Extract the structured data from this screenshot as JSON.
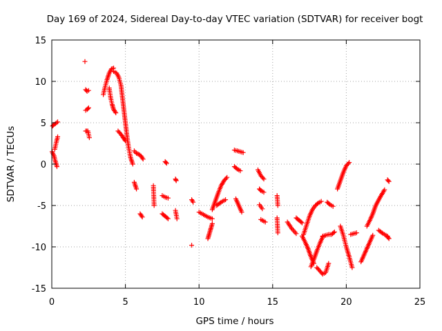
{
  "chart_data": {
    "type": "scatter",
    "title": "Day 169 of 2024, Sidereal Day-to-day VTEC variation (SDTVAR) for receiver bogt",
    "xlabel": "GPS time / hours",
    "ylabel": "SDTVAR / TECUs",
    "xlim": [
      0,
      25
    ],
    "ylim": [
      -15,
      15
    ],
    "x_ticks": [
      0,
      5,
      10,
      15,
      20,
      25
    ],
    "y_ticks": [
      -15,
      -10,
      -5,
      0,
      5,
      10,
      15
    ],
    "x_tick_labels": [
      "0",
      "5",
      "10",
      "15",
      "20",
      "25"
    ],
    "y_tick_labels": [
      "-15",
      "-10",
      "-5",
      "0",
      "5",
      "10",
      "15"
    ],
    "grid": true,
    "marker": "plus",
    "color": "#ff0000",
    "segments": [
      {
        "x": [
          0.02,
          0.15,
          0.25,
          0.35
        ],
        "y": [
          1.5,
          1.0,
          0.3,
          -0.3
        ]
      },
      {
        "x": [
          0.05,
          0.15,
          0.25,
          0.4
        ],
        "y": [
          4.6,
          4.8,
          4.9,
          5.1
        ]
      },
      {
        "x": [
          0.2,
          0.3,
          0.4
        ],
        "y": [
          1.8,
          2.6,
          3.3
        ]
      },
      {
        "x": [
          2.25
        ],
        "y": [
          12.4
        ]
      },
      {
        "x": [
          2.3,
          2.4,
          2.5
        ],
        "y": [
          9.0,
          8.8,
          8.9
        ]
      },
      {
        "x": [
          2.3,
          2.4,
          2.5
        ],
        "y": [
          6.5,
          6.6,
          6.8
        ]
      },
      {
        "x": [
          2.3,
          2.45,
          2.55
        ],
        "y": [
          4.0,
          4.0,
          3.2
        ]
      },
      {
        "x": [
          3.5,
          3.6,
          3.75,
          3.9,
          4.05,
          4.2
        ],
        "y": [
          8.4,
          9.2,
          10.2,
          11.0,
          11.5,
          11.6
        ]
      },
      {
        "x": [
          3.9,
          4.0,
          4.1,
          4.2,
          4.35
        ],
        "y": [
          9.2,
          8.0,
          7.2,
          6.6,
          6.2
        ]
      },
      {
        "x": [
          4.2,
          4.4,
          4.55,
          4.7,
          4.8,
          4.9,
          5.0,
          5.1,
          5.2,
          5.35,
          5.5
        ],
        "y": [
          11.2,
          11.0,
          10.5,
          9.5,
          8.0,
          6.5,
          5.0,
          3.5,
          2.2,
          0.8,
          0.0
        ]
      },
      {
        "x": [
          4.5,
          4.7,
          4.85,
          5.0
        ],
        "y": [
          4.0,
          3.6,
          3.2,
          2.8
        ]
      },
      {
        "x": [
          5.6,
          5.75,
          5.9,
          6.05,
          6.2
        ],
        "y": [
          1.6,
          1.3,
          1.2,
          1.0,
          0.6
        ]
      },
      {
        "x": [
          5.6,
          5.75
        ],
        "y": [
          -2.2,
          -3.0
        ]
      },
      {
        "x": [
          6.0,
          6.15
        ],
        "y": [
          -6.0,
          -6.4
        ]
      },
      {
        "x": [
          6.9,
          6.95
        ],
        "y": [
          -2.6,
          -5.0
        ]
      },
      {
        "x": [
          7.5,
          7.7,
          7.9
        ],
        "y": [
          -3.8,
          -4.0,
          -4.1
        ]
      },
      {
        "x": [
          7.5,
          7.7,
          7.9
        ],
        "y": [
          -6.0,
          -6.3,
          -6.6
        ]
      },
      {
        "x": [
          7.7,
          7.8
        ],
        "y": [
          0.3,
          0.1
        ]
      },
      {
        "x": [
          8.4,
          8.45
        ],
        "y": [
          -1.8,
          -2.0
        ]
      },
      {
        "x": [
          8.4,
          8.5
        ],
        "y": [
          -5.6,
          -6.6
        ]
      },
      {
        "x": [
          9.5,
          9.6
        ],
        "y": [
          -4.3,
          -4.6
        ]
      },
      {
        "x": [
          9.5
        ],
        "y": [
          -9.8
        ]
      },
      {
        "x": [
          10.0,
          10.3,
          10.6,
          10.9
        ],
        "y": [
          -5.8,
          -6.1,
          -6.4,
          -6.6
        ]
      },
      {
        "x": [
          10.6,
          10.7,
          10.8,
          10.9
        ],
        "y": [
          -9.0,
          -8.4,
          -7.8,
          -7.2
        ]
      },
      {
        "x": [
          10.9,
          11.1,
          11.3,
          11.5,
          11.7,
          11.9
        ],
        "y": [
          -5.5,
          -4.5,
          -3.5,
          -2.6,
          -2.0,
          -1.6
        ]
      },
      {
        "x": [
          11.2,
          11.5,
          11.8
        ],
        "y": [
          -5.0,
          -4.6,
          -4.3
        ]
      },
      {
        "x": [
          12.4,
          12.6,
          12.8,
          13.0
        ],
        "y": [
          1.7,
          1.6,
          1.5,
          1.4
        ]
      },
      {
        "x": [
          12.4,
          12.6,
          12.8
        ],
        "y": [
          -0.3,
          -0.6,
          -0.8
        ]
      },
      {
        "x": [
          12.5,
          12.7,
          12.9
        ],
        "y": [
          -4.2,
          -5.0,
          -5.8
        ]
      },
      {
        "x": [
          14.0,
          14.2,
          14.4
        ],
        "y": [
          -0.7,
          -1.4,
          -1.8
        ]
      },
      {
        "x": [
          14.1,
          14.2,
          14.4
        ],
        "y": [
          -3.0,
          -3.2,
          -3.4
        ]
      },
      {
        "x": [
          14.1,
          14.3
        ],
        "y": [
          -4.9,
          -5.4
        ]
      },
      {
        "x": [
          14.2,
          14.5
        ],
        "y": [
          -6.7,
          -7.0
        ]
      },
      {
        "x": [
          15.3,
          15.35
        ],
        "y": [
          -3.8,
          -5.0
        ]
      },
      {
        "x": [
          15.3,
          15.35
        ],
        "y": [
          -6.5,
          -8.3
        ]
      },
      {
        "x": [
          16.0,
          16.3,
          16.6
        ],
        "y": [
          -7.0,
          -7.8,
          -8.4
        ]
      },
      {
        "x": [
          16.6,
          16.8,
          17.0
        ],
        "y": [
          -6.5,
          -6.8,
          -7.1
        ]
      },
      {
        "x": [
          17.0,
          17.2,
          17.4,
          17.6,
          17.8
        ],
        "y": [
          -8.7,
          -9.4,
          -10.2,
          -11.2,
          -12.0
        ]
      },
      {
        "x": [
          17.1,
          17.3,
          17.5,
          17.7,
          17.9,
          18.1,
          18.3
        ],
        "y": [
          -8.5,
          -7.4,
          -6.3,
          -5.5,
          -5.0,
          -4.7,
          -4.5
        ]
      },
      {
        "x": [
          17.6,
          17.8,
          18.0,
          18.2,
          18.4
        ],
        "y": [
          -12.4,
          -11.5,
          -10.5,
          -9.6,
          -8.8
        ]
      },
      {
        "x": [
          18.0,
          18.2,
          18.4,
          18.6,
          18.8
        ],
        "y": [
          -12.5,
          -12.9,
          -13.3,
          -13.1,
          -12.0
        ]
      },
      {
        "x": [
          18.4,
          18.6,
          18.8,
          19.0,
          19.2
        ],
        "y": [
          -8.7,
          -8.6,
          -8.5,
          -8.5,
          -8.2
        ]
      },
      {
        "x": [
          18.7,
          18.9,
          19.1
        ],
        "y": [
          -4.6,
          -4.9,
          -5.1
        ]
      },
      {
        "x": [
          19.4,
          19.6,
          19.8,
          20.0,
          20.2
        ],
        "y": [
          -3.0,
          -2.0,
          -1.0,
          -0.2,
          0.2
        ]
      },
      {
        "x": [
          19.6,
          19.8,
          20.0,
          20.2,
          20.4
        ],
        "y": [
          -7.5,
          -8.6,
          -10.0,
          -11.2,
          -12.5
        ]
      },
      {
        "x": [
          20.3,
          20.5,
          20.7
        ],
        "y": [
          -8.5,
          -8.4,
          -8.3
        ]
      },
      {
        "x": [
          21.0,
          21.2,
          21.4,
          21.6,
          21.8
        ],
        "y": [
          -11.8,
          -11.0,
          -10.2,
          -9.4,
          -8.6
        ]
      },
      {
        "x": [
          21.4,
          21.6,
          21.8,
          22.0,
          22.3,
          22.6
        ],
        "y": [
          -7.5,
          -6.8,
          -6.0,
          -5.0,
          -4.0,
          -3.1
        ]
      },
      {
        "x": [
          22.2,
          22.5,
          22.8
        ],
        "y": [
          -8.0,
          -8.4,
          -8.7
        ]
      },
      {
        "x": [
          22.8,
          22.9
        ],
        "y": [
          -1.9,
          -2.1
        ]
      },
      {
        "x": [
          22.8,
          22.9
        ],
        "y": [
          -8.8,
          -9.0
        ]
      }
    ]
  }
}
